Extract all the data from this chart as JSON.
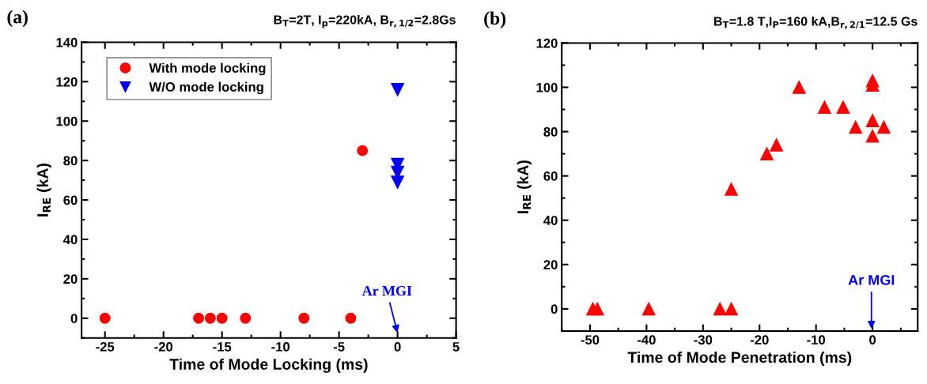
{
  "chart_data": [
    {
      "type": "scatter",
      "title": "(a)",
      "subtitle": "B$_{T}$=2T, I$_{p}$=220kA, B$_{r,1/2}$=2.8Gs",
      "xlabel": "Time of Mode Locking (ms)",
      "ylabel": "I$_{RE}$ (kA)",
      "xlim": [
        -27,
        5
      ],
      "xticks": [
        -25,
        -20,
        -15,
        -10,
        -5,
        0,
        5
      ],
      "ylim": [
        -10,
        140
      ],
      "yticks": [
        0,
        20,
        40,
        60,
        80,
        100,
        120,
        140
      ],
      "legend": "top left",
      "grid": false,
      "series": [
        {
          "name": "With mode locking",
          "color": "#ff0000",
          "marker": "circle",
          "x": [
            -25,
            -17,
            -16,
            -15,
            -13,
            -8,
            -4,
            -3
          ],
          "values": [
            0,
            0,
            0,
            0,
            0,
            0,
            0,
            85
          ]
        },
        {
          "name": "W/O mode locking",
          "color": "#0000ff",
          "marker": "triangle_down",
          "x": [
            0,
            0,
            0,
            0
          ],
          "values": [
            116,
            78,
            74,
            69
          ]
        }
      ],
      "annotations": [
        "Ar MGI"
      ]
    },
    {
      "type": "scatter",
      "title": "(b)",
      "subtitle": "B$_{T}$=1.8 T,I$_{P}$=160 kA,B$_{r,2/1}$=12.5 Gs",
      "xlabel": "Time of Mode Penetration (ms)",
      "ylabel": "I$_{RE}$ (kA)",
      "xlim": [
        -55,
        8
      ],
      "xticks": [
        -50,
        -40,
        -30,
        -20,
        -10,
        0
      ],
      "ylim": [
        -10,
        120
      ],
      "yticks": [
        0,
        20,
        40,
        60,
        80,
        100,
        120
      ],
      "grid": false,
      "series": [
        {
          "color": "#ff0000",
          "marker": "triangle",
          "x": [
            -49.5,
            -48.7,
            -39.6,
            -27,
            -25,
            -25,
            -18.7,
            -17,
            -13,
            -8.5,
            -5.2,
            -3,
            0,
            0,
            0,
            0,
            2
          ],
          "values": [
            0,
            0,
            0,
            0,
            0,
            54,
            70,
            74,
            100,
            91,
            91,
            82,
            103,
            101,
            85,
            78,
            82
          ]
        }
      ],
      "annotations": [
        "Ar MGI"
      ]
    }
  ]
}
